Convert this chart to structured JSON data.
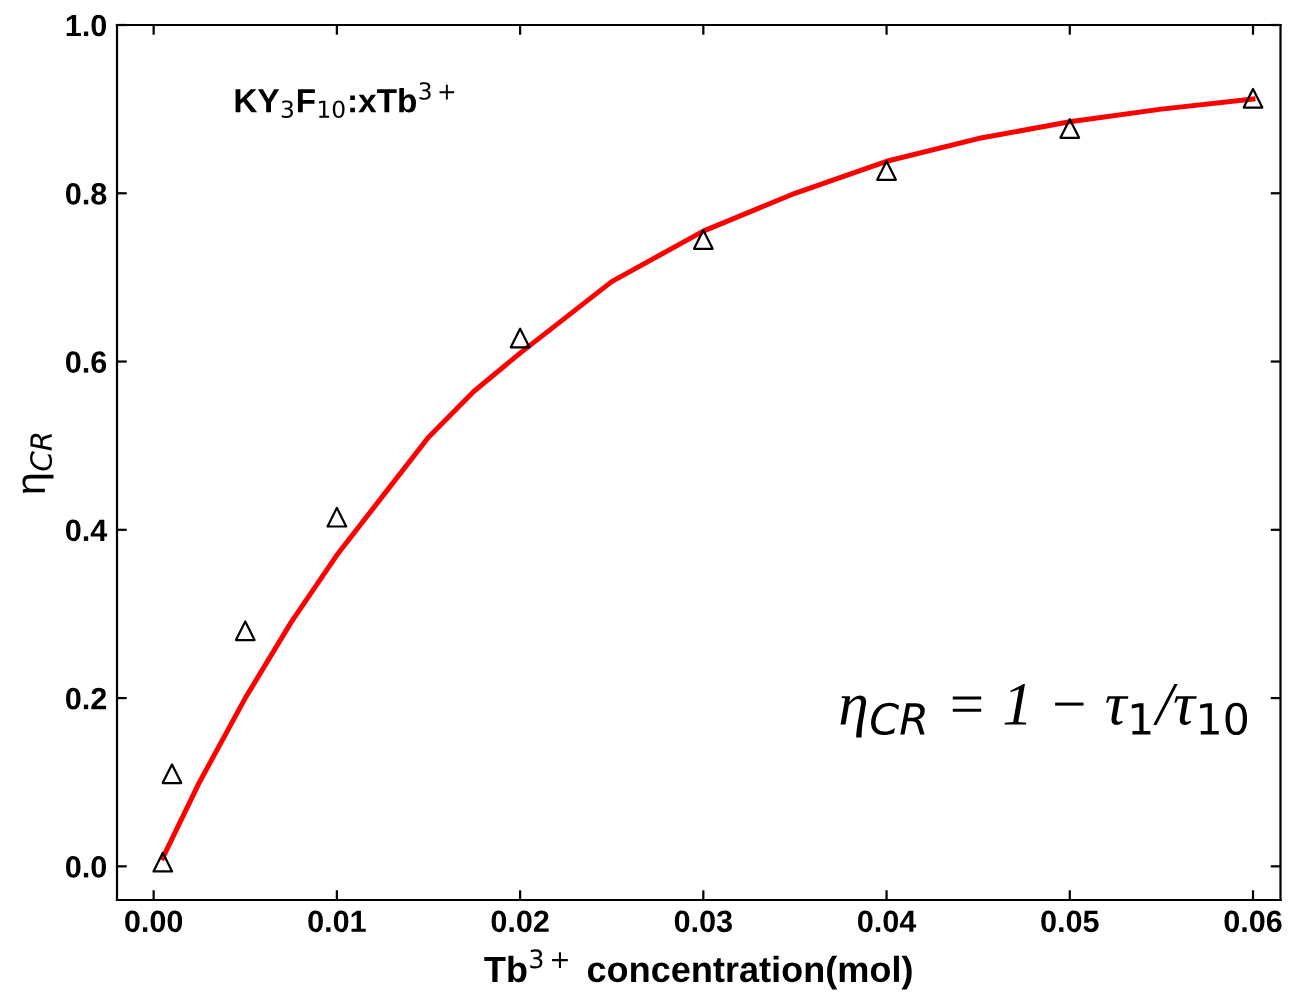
{
  "chart_data": {
    "type": "scatter",
    "xlabel": "Tb$^{3+}$ concentration(mol)",
    "ylabel": "η$_{CR}$",
    "annotations": [
      "KY$_{3}$F$_{10}$:xTb$^{3+}$",
      "η$_{CR}$ = 1 − τ$_{1}$/τ$_{10}$"
    ],
    "series": [
      {
        "type": "scatter",
        "color": "#000000",
        "marker": "triangle",
        "x": [
          0.0005,
          0.001,
          0.005,
          0.01,
          0.02,
          0.03,
          0.04,
          0.05,
          0.06
        ],
        "values": [
          0.005,
          0.11,
          0.28,
          0.415,
          0.628,
          0.745,
          0.827,
          0.877,
          0.913
        ]
      },
      {
        "type": "line",
        "color": "#ff0000",
        "marker": "none",
        "x": [
          0.0005,
          0.0025,
          0.005,
          0.0075,
          0.01,
          0.0125,
          0.015,
          0.0175,
          0.02,
          0.025,
          0.03,
          0.035,
          0.04,
          0.045,
          0.05,
          0.055,
          0.06
        ],
        "values": [
          0.01,
          0.1,
          0.2,
          0.29,
          0.37,
          0.44,
          0.51,
          0.565,
          0.61,
          0.695,
          0.755,
          0.8,
          0.838,
          0.865,
          0.885,
          0.9,
          0.912
        ]
      }
    ],
    "xlim": [
      -0.002,
      0.0615
    ],
    "ylim": [
      -0.04,
      1.0
    ],
    "xticks": [
      {
        "value": 0,
        "label": "0.00"
      },
      0.01,
      0.02,
      0.03,
      0.04,
      0.05,
      0.06
    ],
    "yticks": [
      {
        "value": 0,
        "label": "0.0"
      },
      0.2,
      0.4,
      0.6,
      0.8,
      {
        "value": 1,
        "label": "1.0"
      }
    ],
    "grid": false,
    "legend": false
  }
}
